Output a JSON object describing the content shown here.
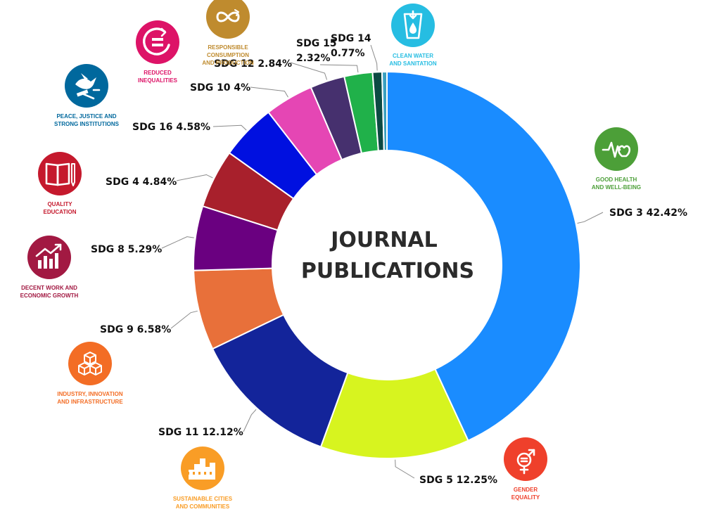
{
  "chart_data": {
    "type": "pie",
    "title": "JOURNAL PUBLICATIONS",
    "title_lines": [
      "JOURNAL",
      "PUBLICATIONS"
    ],
    "slices": [
      {
        "key": "sdg3",
        "label": "SDG 3 42.42%",
        "name": "SDG 3",
        "value": 42.42,
        "color": "#1a8cff"
      },
      {
        "key": "sdg5",
        "label": "SDG 5 12.25%",
        "name": "SDG 5",
        "value": 12.25,
        "color": "#d7f41f"
      },
      {
        "key": "sdg11",
        "label": "SDG 11 12.12%",
        "name": "SDG 11",
        "value": 12.12,
        "color": "#13249a"
      },
      {
        "key": "sdg9",
        "label": "SDG 9 6.58%",
        "name": "SDG 9",
        "value": 6.58,
        "color": "#e8703a"
      },
      {
        "key": "sdg8",
        "label": "SDG 8 5.29%",
        "name": "SDG 8",
        "value": 5.29,
        "color": "#6a0080"
      },
      {
        "key": "sdg4",
        "label": "SDG 4 4.84%",
        "name": "SDG 4",
        "value": 4.84,
        "color": "#a8202c"
      },
      {
        "key": "sdg16",
        "label": "SDG 16 4.58%",
        "name": "SDG 16",
        "value": 4.58,
        "color": "#0010e0"
      },
      {
        "key": "sdg10",
        "label": "SDG 10 4%",
        "name": "SDG 10",
        "value": 4.0,
        "color": "#e546b4"
      },
      {
        "key": "sdg12",
        "label": "SDG 12 2.84%",
        "name": "SDG 12",
        "value": 2.84,
        "color": "#46306e"
      },
      {
        "key": "sdg15",
        "label": "SDG 15 2.32%",
        "name": "SDG 15",
        "value": 2.32,
        "color": "#20b14a",
        "lines": [
          "SDG 15",
          "2.32%"
        ]
      },
      {
        "key": "sdg14",
        "label": "SDG 14 0.77%",
        "name": "SDG 14",
        "value": 0.77,
        "color": "#0c4a43",
        "lines": [
          "SDG 14",
          "0.77%"
        ]
      },
      {
        "key": "sdg6",
        "label": "",
        "name": "SDG 6",
        "value": 0.4,
        "color": "#3aa0c0"
      }
    ]
  },
  "goal_icons": [
    {
      "key": "sdg3",
      "lines": [
        "GOOD HEALTH",
        "AND WELL-BEING"
      ],
      "color": "#4c9f38",
      "icon": "heartbeat-icon"
    },
    {
      "key": "sdg5",
      "lines": [
        "GENDER",
        "EQUALITY"
      ],
      "color": "#ef402b",
      "icon": "gender-symbol-icon"
    },
    {
      "key": "sdg11",
      "lines": [
        "SUSTAINABLE CITIES",
        "AND COMMUNITIES"
      ],
      "color": "#f99d26",
      "icon": "city-buildings-icon"
    },
    {
      "key": "sdg9",
      "lines": [
        "INDUSTRY, INNOVATION",
        "AND INFRASTRUCTURE"
      ],
      "color": "#f36d25",
      "icon": "cubes-icon"
    },
    {
      "key": "sdg8",
      "lines": [
        "DECENT WORK AND",
        "ECONOMIC GROWTH"
      ],
      "color": "#a21942",
      "icon": "growth-chart-icon"
    },
    {
      "key": "sdg4",
      "lines": [
        "QUALITY",
        "EDUCATION"
      ],
      "color": "#c5192d",
      "icon": "book-pencil-icon"
    },
    {
      "key": "sdg16",
      "lines": [
        "PEACE, JUSTICE AND",
        "STRONG INSTITUTIONS"
      ],
      "color": "#00689d",
      "icon": "dove-gavel-icon"
    },
    {
      "key": "sdg10",
      "lines": [
        "REDUCED",
        "INEQUALITIES"
      ],
      "color": "#dd1367",
      "icon": "equality-icon"
    },
    {
      "key": "sdg12",
      "lines": [
        "RESPONSIBLE",
        "CONSUMPTION",
        "AND PRODUCTION"
      ],
      "color": "#bf8b2e",
      "icon": "infinity-loop-icon"
    },
    {
      "key": "sdg6",
      "lines": [
        "CLEAN WATER",
        "AND SANITATION"
      ],
      "color": "#26bde2",
      "icon": "water-glass-icon"
    }
  ]
}
